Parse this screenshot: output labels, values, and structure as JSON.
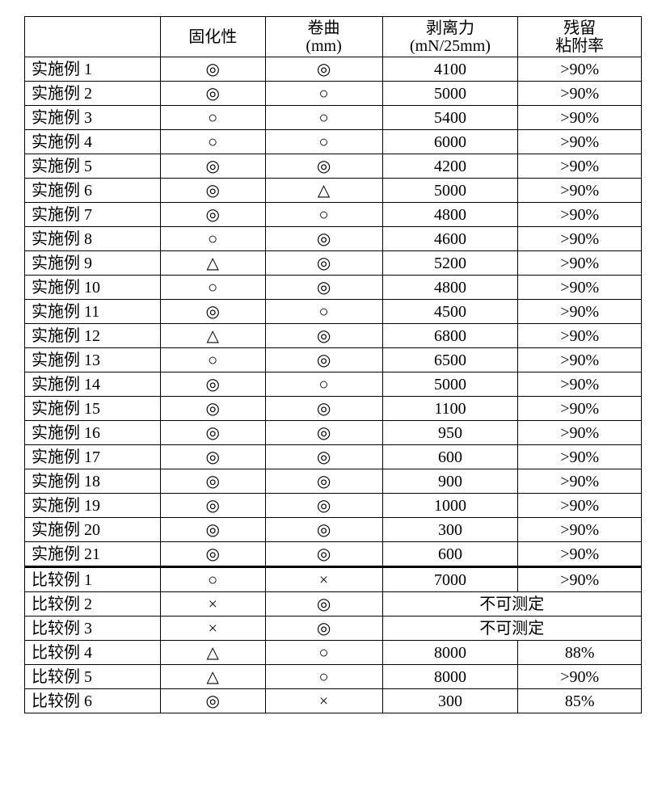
{
  "symbols": {
    "double_circle": "◎",
    "circle": "○",
    "triangle": "△",
    "cross": "×"
  },
  "headers": {
    "blank": "",
    "col1": "固化性",
    "col2_l1": "卷曲",
    "col2_l2": "(mm)",
    "col3_l1": "剥离力",
    "col3_l2": "(mN/25mm)",
    "col4_l1": "残留",
    "col4_l2": "粘附率"
  },
  "unmeasurable": "不可测定",
  "rows": [
    {
      "label": "实施例 1",
      "c1": "◎",
      "c2": "◎",
      "c3": "4100",
      "c4": ">90%",
      "thick": false
    },
    {
      "label": "实施例 2",
      "c1": "◎",
      "c2": "○",
      "c3": "5000",
      "c4": ">90%",
      "thick": false
    },
    {
      "label": "实施例 3",
      "c1": "○",
      "c2": "○",
      "c3": "5400",
      "c4": ">90%",
      "thick": false
    },
    {
      "label": "实施例 4",
      "c1": "○",
      "c2": "○",
      "c3": "6000",
      "c4": ">90%",
      "thick": false
    },
    {
      "label": "实施例 5",
      "c1": "◎",
      "c2": "◎",
      "c3": "4200",
      "c4": ">90%",
      "thick": false
    },
    {
      "label": "实施例 6",
      "c1": "◎",
      "c2": "△",
      "c3": "5000",
      "c4": ">90%",
      "thick": false
    },
    {
      "label": "实施例 7",
      "c1": "◎",
      "c2": "○",
      "c3": "4800",
      "c4": ">90%",
      "thick": false
    },
    {
      "label": "实施例 8",
      "c1": "○",
      "c2": "◎",
      "c3": "4600",
      "c4": ">90%",
      "thick": false
    },
    {
      "label": "实施例 9",
      "c1": "△",
      "c2": "◎",
      "c3": "5200",
      "c4": ">90%",
      "thick": false
    },
    {
      "label": "实施例 10",
      "c1": "○",
      "c2": "◎",
      "c3": "4800",
      "c4": ">90%",
      "thick": false
    },
    {
      "label": "实施例 11",
      "c1": "◎",
      "c2": "○",
      "c3": "4500",
      "c4": ">90%",
      "thick": false
    },
    {
      "label": "实施例 12",
      "c1": "△",
      "c2": "◎",
      "c3": "6800",
      "c4": ">90%",
      "thick": false
    },
    {
      "label": "实施例 13",
      "c1": "○",
      "c2": "◎",
      "c3": "6500",
      "c4": ">90%",
      "thick": false
    },
    {
      "label": "实施例 14",
      "c1": "◎",
      "c2": "○",
      "c3": "5000",
      "c4": ">90%",
      "thick": false
    },
    {
      "label": "实施例 15",
      "c1": "◎",
      "c2": "◎",
      "c3": "1100",
      "c4": ">90%",
      "thick": false
    },
    {
      "label": "实施例 16",
      "c1": "◎",
      "c2": "◎",
      "c3": "950",
      "c4": ">90%",
      "thick": false
    },
    {
      "label": "实施例 17",
      "c1": "◎",
      "c2": "◎",
      "c3": "600",
      "c4": ">90%",
      "thick": false
    },
    {
      "label": "实施例 18",
      "c1": "◎",
      "c2": "◎",
      "c3": "900",
      "c4": ">90%",
      "thick": false
    },
    {
      "label": "实施例 19",
      "c1": "◎",
      "c2": "◎",
      "c3": "1000",
      "c4": ">90%",
      "thick": false
    },
    {
      "label": "实施例 20",
      "c1": "◎",
      "c2": "◎",
      "c3": "300",
      "c4": ">90%",
      "thick": false
    },
    {
      "label": "实施例 21",
      "c1": "◎",
      "c2": "◎",
      "c3": "600",
      "c4": ">90%",
      "thick": false
    },
    {
      "label": "比较例 1",
      "c1": "○",
      "c2": "×",
      "c3": "7000",
      "c4": ">90%",
      "thick": true
    },
    {
      "label": "比较例 2",
      "c1": "×",
      "c2": "◎",
      "merged": true,
      "thick": false
    },
    {
      "label": "比较例 3",
      "c1": "×",
      "c2": "◎",
      "merged": true,
      "thick": false
    },
    {
      "label": "比较例 4",
      "c1": "△",
      "c2": "○",
      "c3": "8000",
      "c4": "88%",
      "thick": false
    },
    {
      "label": "比较例 5",
      "c1": "△",
      "c2": "○",
      "c3": "8000",
      "c4": ">90%",
      "thick": false
    },
    {
      "label": "比较例 6",
      "c1": "◎",
      "c2": "×",
      "c3": "300",
      "c4": "85%",
      "thick": false
    }
  ]
}
